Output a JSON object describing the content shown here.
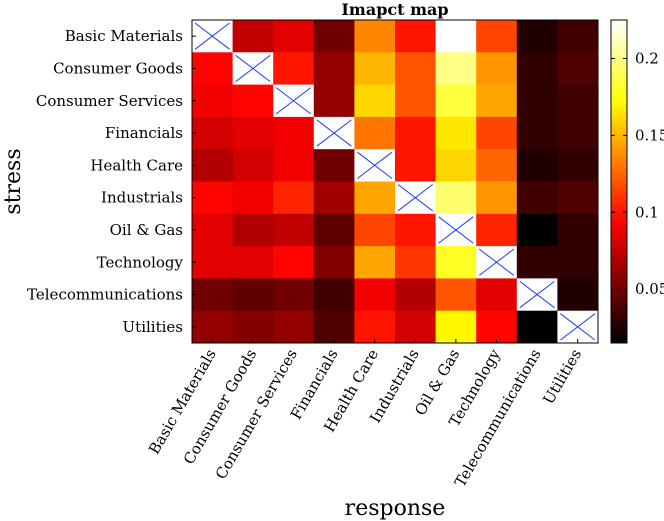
{
  "chart_data": {
    "type": "heatmap",
    "title": "Imapct map",
    "xlabel": "response",
    "ylabel": "stress",
    "rows": [
      "Basic Materials",
      "Consumer Goods",
      "Consumer Services",
      "Financials",
      "Health Care",
      "Industrials",
      "Oil & Gas",
      "Technology",
      "Telecommunications",
      "Utilities"
    ],
    "columns": [
      "Basic Materials",
      "Consumer Goods",
      "Consumer Services",
      "Financials",
      "Health Care",
      "Industrials",
      "Oil & Gas",
      "Technology",
      "Telecommunications",
      "Utilities"
    ],
    "values": [
      [
        null,
        0.075,
        0.085,
        0.05,
        0.135,
        0.1,
        0.225,
        0.115,
        0.025,
        0.035
      ],
      [
        0.095,
        null,
        0.1,
        0.06,
        0.15,
        0.12,
        0.2,
        0.14,
        0.03,
        0.04
      ],
      [
        0.09,
        0.095,
        null,
        0.06,
        0.16,
        0.12,
        0.185,
        0.145,
        0.03,
        0.035
      ],
      [
        0.08,
        0.085,
        0.09,
        null,
        0.13,
        0.1,
        0.165,
        0.115,
        0.03,
        0.035
      ],
      [
        0.07,
        0.08,
        0.09,
        0.05,
        null,
        0.1,
        0.16,
        0.125,
        0.025,
        0.03
      ],
      [
        0.095,
        0.09,
        0.105,
        0.065,
        0.145,
        null,
        0.195,
        0.14,
        0.035,
        0.04
      ],
      [
        0.085,
        0.07,
        0.075,
        0.045,
        0.115,
        0.1,
        null,
        0.105,
        0.015,
        0.03
      ],
      [
        0.085,
        0.085,
        0.095,
        0.055,
        0.145,
        0.11,
        0.18,
        null,
        0.03,
        0.03
      ],
      [
        0.05,
        0.045,
        0.05,
        0.035,
        0.09,
        0.07,
        0.12,
        0.085,
        null,
        0.025
      ],
      [
        0.06,
        0.055,
        0.06,
        0.04,
        0.1,
        0.08,
        0.17,
        0.095,
        0.01,
        null
      ]
    ],
    "colorbar": {
      "colormap": "hot",
      "min": 0.015,
      "max": 0.225,
      "ticks": [
        0.05,
        0.1,
        0.15,
        0.2
      ],
      "tick_labels": [
        "0.05",
        "0.1",
        "0.15",
        "0.2"
      ]
    },
    "diagonal_marker": "X"
  },
  "colors": {
    "marker": "#1a3cff",
    "axis": "#000000"
  }
}
